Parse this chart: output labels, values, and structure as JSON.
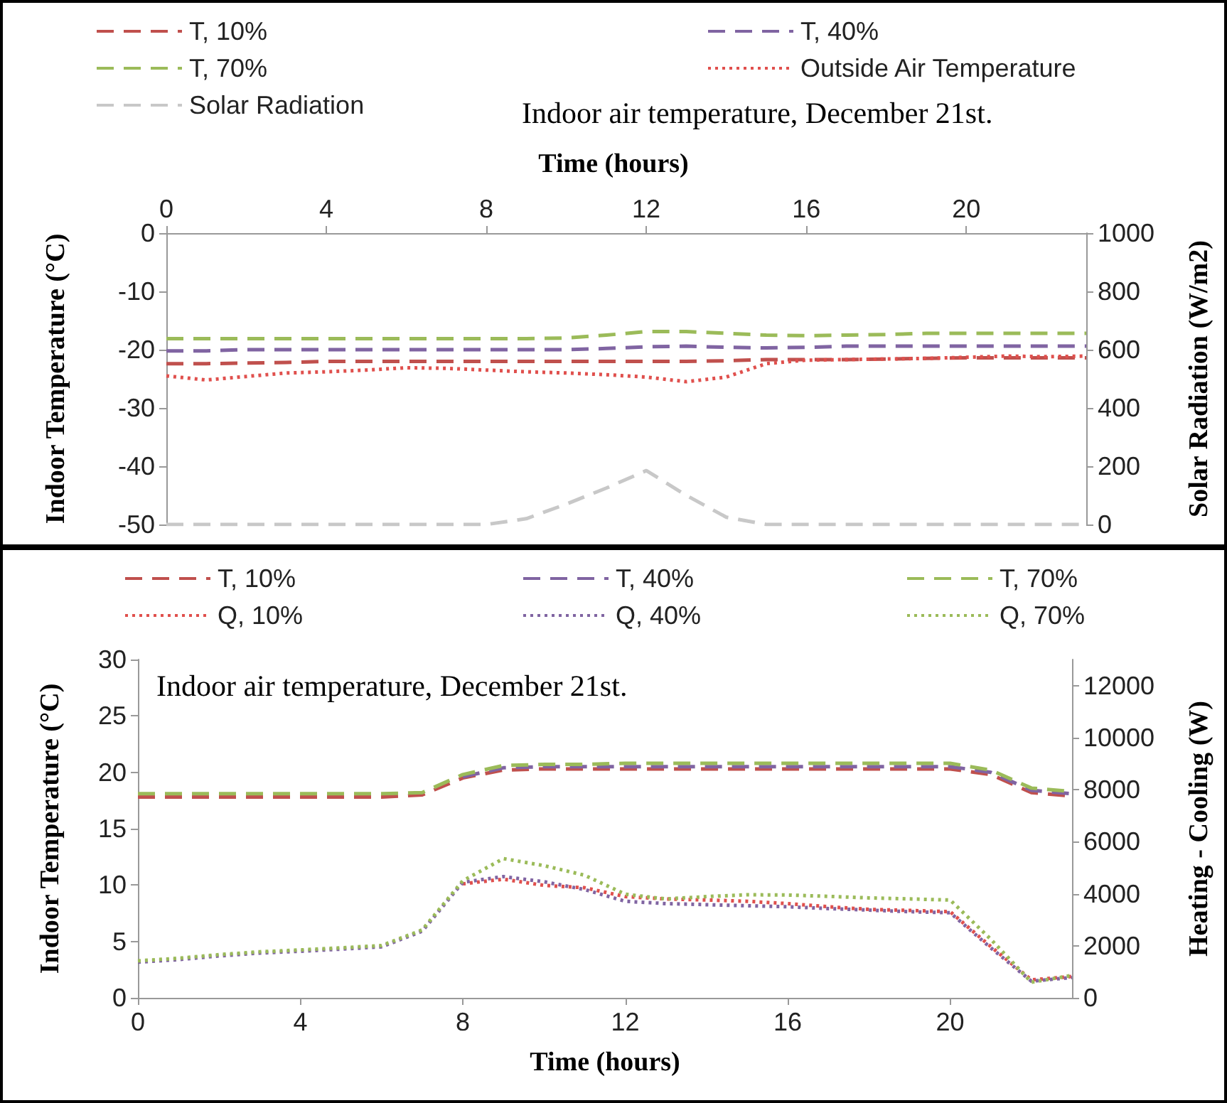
{
  "chart_data": [
    {
      "type": "line",
      "title": "Indoor air temperature, December 21st.",
      "xlabel": "Time (hours)",
      "ylabel": "Indoor Temperature (°C)",
      "y2label": "Solar Radiation (W/m2)",
      "x": [
        0,
        1,
        2,
        3,
        4,
        5,
        6,
        7,
        8,
        9,
        10,
        11,
        12,
        13,
        14,
        15,
        16,
        17,
        18,
        19,
        20,
        21,
        22,
        23
      ],
      "xlim": [
        0,
        23
      ],
      "xticks": [
        0,
        4,
        8,
        12,
        16,
        20
      ],
      "ylim": [
        -50,
        0
      ],
      "yticks": [
        -50,
        -40,
        -30,
        -20,
        -10,
        0
      ],
      "y2lim": [
        0,
        1000
      ],
      "y2ticks": [
        0,
        200,
        400,
        600,
        800,
        1000
      ],
      "legend": "top",
      "grid": false,
      "series": [
        {
          "name": "T, 10%",
          "color": "#c0504d",
          "line_style": "dashed",
          "values": [
            -22.4,
            -22.4,
            -22.3,
            -22.2,
            -22,
            -22,
            -22,
            -22,
            -22,
            -22,
            -22,
            -22,
            -22,
            -22,
            -21.9,
            -21.7,
            -21.7,
            -21.7,
            -21.6,
            -21.5,
            -21.4,
            -21.4,
            -21.4,
            -21.4
          ]
        },
        {
          "name": "T, 40%",
          "color": "#8064a2",
          "line_style": "dashed",
          "values": [
            -20.2,
            -20.2,
            -20,
            -20,
            -20,
            -20,
            -20,
            -20,
            -20,
            -20,
            -20,
            -19.8,
            -19.5,
            -19.4,
            -19.6,
            -19.7,
            -19.6,
            -19.4,
            -19.4,
            -19.4,
            -19.4,
            -19.4,
            -19.4,
            -19.4
          ]
        },
        {
          "name": "T, 70%",
          "color": "#9bbb59",
          "line_style": "dashed",
          "values": [
            -18.1,
            -18.1,
            -18.1,
            -18.1,
            -18.1,
            -18.1,
            -18.1,
            -18.1,
            -18.1,
            -18.1,
            -18,
            -17.5,
            -16.9,
            -16.9,
            -17.2,
            -17.5,
            -17.6,
            -17.5,
            -17.4,
            -17.2,
            -17.2,
            -17.2,
            -17.2,
            -17.2
          ]
        },
        {
          "name": "Outside Air Temperature",
          "color": "#e0504d",
          "line_style": "dotted",
          "values": [
            -24.5,
            -25.2,
            -24.6,
            -24,
            -23.8,
            -23.5,
            -23.1,
            -23.2,
            -23.5,
            -23.8,
            -24,
            -24.3,
            -24.7,
            -25.5,
            -24.7,
            -22.4,
            -21.8,
            -21.7,
            -21.6,
            -21.5,
            -21.3,
            -21.1,
            -21.2,
            -21.1
          ]
        },
        {
          "name": "Solar Radiation",
          "color": "#c8c8c8",
          "line_style": "dashed",
          "axis": "y2",
          "values": [
            0,
            0,
            0,
            0,
            0,
            0,
            0,
            0,
            0,
            20,
            70,
            125,
            185,
            100,
            25,
            0,
            0,
            0,
            0,
            0,
            0,
            0,
            0,
            0
          ]
        }
      ]
    },
    {
      "type": "line",
      "title": "Indoor air temperature, December 21st.",
      "xlabel": "Time (hours)",
      "ylabel": "Indoor Temperature (°C)",
      "y2label": "Heating - Cooling (W)",
      "x": [
        0,
        1,
        2,
        3,
        4,
        5,
        6,
        7,
        8,
        9,
        10,
        11,
        12,
        13,
        14,
        15,
        16,
        17,
        18,
        19,
        20,
        21,
        22,
        23
      ],
      "xlim": [
        0,
        23
      ],
      "xticks": [
        0,
        4,
        8,
        12,
        16,
        20
      ],
      "ylim": [
        0,
        30
      ],
      "yticks": [
        0,
        5,
        10,
        15,
        20,
        25,
        30
      ],
      "y2lim": [
        0,
        13000
      ],
      "y2ticks": [
        0,
        2000,
        4000,
        6000,
        8000,
        10000,
        12000
      ],
      "legend": "top",
      "grid": false,
      "series": [
        {
          "name": "T, 10%",
          "color": "#c0504d",
          "line_style": "dashed",
          "values": [
            17.8,
            17.8,
            17.8,
            17.8,
            17.8,
            17.8,
            17.8,
            18,
            19.5,
            20.2,
            20.3,
            20.3,
            20.3,
            20.3,
            20.3,
            20.3,
            20.3,
            20.3,
            20.3,
            20.3,
            20.3,
            19.8,
            18.2,
            17.9
          ]
        },
        {
          "name": "T, 40%",
          "color": "#8064a2",
          "line_style": "dashed",
          "values": [
            null,
            null,
            null,
            null,
            null,
            null,
            null,
            null,
            19.6,
            20.4,
            20.5,
            20.5,
            20.5,
            20.5,
            20.5,
            20.5,
            20.5,
            20.5,
            20.5,
            20.5,
            20.5,
            20,
            18.4,
            18.1
          ]
        },
        {
          "name": "T, 70%",
          "color": "#9bbb59",
          "line_style": "dashed",
          "values": [
            18.1,
            18.1,
            18.1,
            18.1,
            18.1,
            18.1,
            18.1,
            18.2,
            19.8,
            20.6,
            20.7,
            20.7,
            20.8,
            20.8,
            20.8,
            20.8,
            20.8,
            20.8,
            20.8,
            20.8,
            20.8,
            20.2,
            18.6,
            18.3
          ]
        },
        {
          "name": "Q, 10%",
          "color": "#e0504d",
          "line_style": "dotted",
          "axis": "y2",
          "values": [
            null,
            null,
            null,
            null,
            null,
            null,
            null,
            null,
            4380,
            4560,
            4320,
            4230,
            3890,
            3800,
            3760,
            3710,
            3620,
            3500,
            3400,
            3360,
            3310,
            1970,
            690,
            820
          ]
        },
        {
          "name": "Q, 40%",
          "color": "#8064a2",
          "line_style": "dotted",
          "axis": "y2",
          "values": [
            1370,
            1470,
            1610,
            1720,
            1790,
            1870,
            1960,
            2560,
            4440,
            4660,
            4460,
            4160,
            3710,
            3620,
            3580,
            3540,
            3500,
            3430,
            3370,
            3310,
            3270,
            1920,
            640,
            780
          ]
        },
        {
          "name": "Q, 70%",
          "color": "#9bbb59",
          "line_style": "dotted",
          "axis": "y2",
          "values": [
            1420,
            1520,
            1660,
            1770,
            1840,
            1920,
            2010,
            2610,
            4500,
            5350,
            5080,
            4710,
            3980,
            3800,
            3890,
            3960,
            3950,
            3900,
            3840,
            3800,
            3760,
            2250,
            600,
            860
          ]
        }
      ]
    }
  ]
}
